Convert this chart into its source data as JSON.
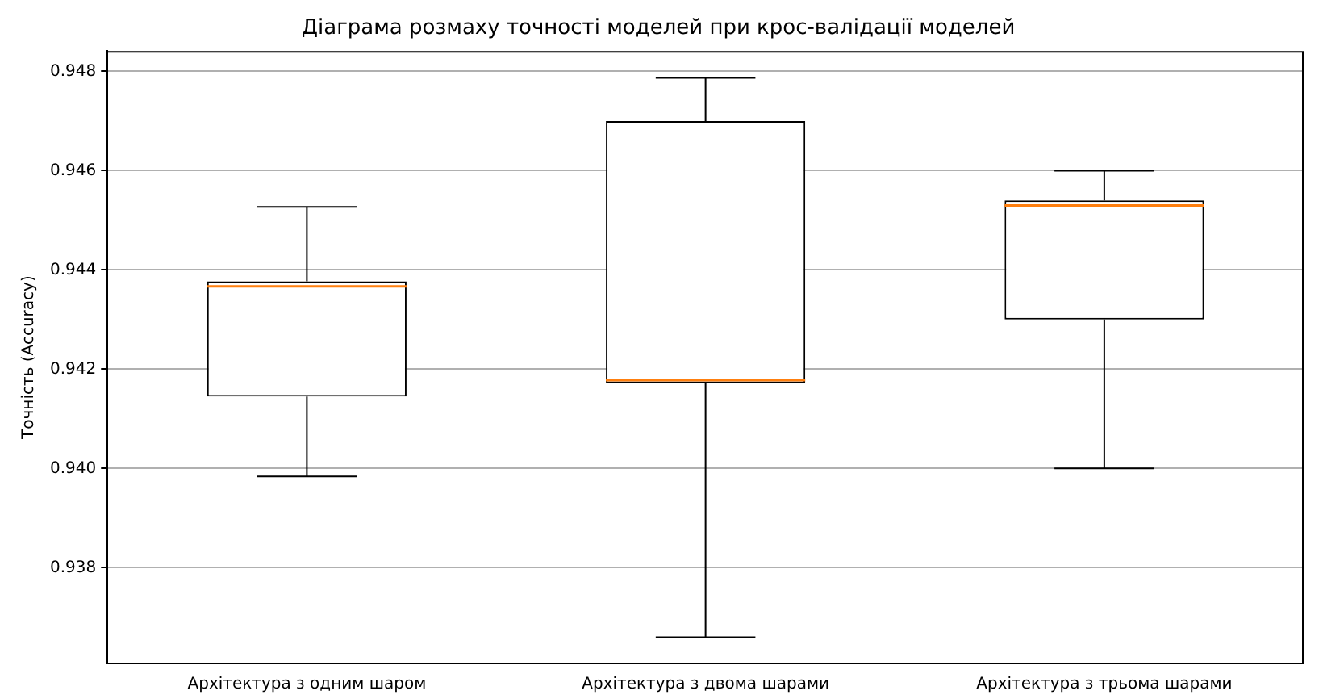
{
  "chart_data": {
    "type": "box",
    "title": "Діаграма розмаху точності моделей при крос-валідації моделей",
    "ylabel": "Точність (Accuracy)",
    "categories": [
      "Архітектура з одним шаром",
      "Архітектура з двома шарами",
      "Архітектура з трьома шарами"
    ],
    "boxes": [
      {
        "low": 0.93984,
        "q1": 0.94145,
        "median": 0.94367,
        "q3": 0.94377,
        "high": 0.94527
      },
      {
        "low": 0.9366,
        "q1": 0.94172,
        "median": 0.94178,
        "q3": 0.947,
        "high": 0.94787
      },
      {
        "low": 0.94,
        "q1": 0.943,
        "median": 0.9453,
        "q3": 0.9454,
        "high": 0.946
      }
    ],
    "color": "#000000",
    "ylim": [
      0.93607,
      0.94841
    ],
    "yticks": [
      0.938,
      {
        "value": 0.94,
        "label": "0.940"
      },
      0.942,
      0.944,
      0.946,
      0.948
    ],
    "grid": "y"
  }
}
